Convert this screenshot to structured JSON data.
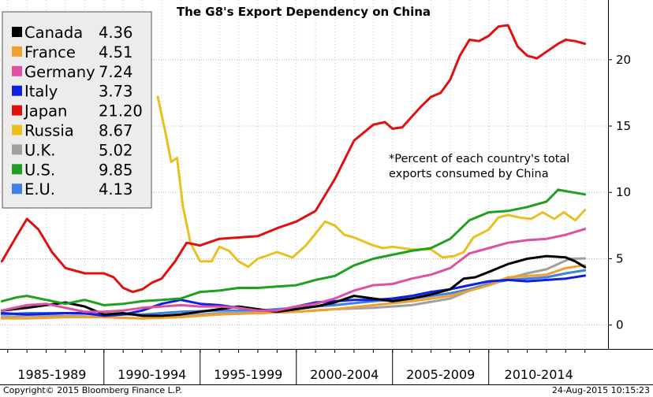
{
  "chart_data": {
    "type": "line",
    "title": "The G8's Export Dependency on China",
    "note_lines": [
      "*Percent of each country's total",
      "exports consumed by China"
    ],
    "categories": [
      "1985-1989",
      "1990-1994",
      "1995-1999",
      "2000-2004",
      "2005-2009",
      "2010-2014"
    ],
    "yticks": [
      0,
      5,
      10,
      15,
      20
    ],
    "ylim": [
      -1.8,
      24.5
    ],
    "xlim": [
      1984.6,
      2016.2
    ],
    "footer_left": "Copyright© 2015 Bloomberg Finance L.P.",
    "footer_right": "24-Aug-2015 10:15:23",
    "series": [
      {
        "name": "Canada",
        "last": "4.36",
        "color": "#000000",
        "x": [
          1984.7,
          1986,
          1987,
          1988,
          1989,
          1990,
          1991,
          1992,
          1993,
          1994,
          1995,
          1996,
          1997,
          1998,
          1999,
          2000,
          2001,
          2002,
          2003,
          2004,
          2005,
          2006,
          2007,
          2008,
          2008.7,
          2009.3,
          2010,
          2011,
          2012,
          2013,
          2014,
          2014.5,
          2015
        ],
        "y": [
          1.1,
          1.3,
          1.5,
          1.7,
          1.4,
          0.8,
          0.9,
          0.7,
          0.7,
          0.8,
          1.0,
          1.2,
          1.4,
          1.2,
          1.0,
          1.2,
          1.4,
          1.7,
          2.2,
          2.0,
          1.8,
          2.0,
          2.3,
          2.7,
          3.5,
          3.6,
          4.0,
          4.6,
          5.0,
          5.2,
          5.1,
          4.8,
          4.36
        ]
      },
      {
        "name": "France",
        "last": "4.51",
        "color": "#f0a030",
        "x": [
          1984.7,
          1986,
          1988,
          1990,
          1992,
          1994,
          1996,
          1998,
          2000,
          2002,
          2004,
          2006,
          2008,
          2009,
          2010,
          2011,
          2012,
          2013,
          2014,
          2015
        ],
        "y": [
          0.5,
          0.5,
          0.6,
          0.6,
          0.5,
          0.6,
          0.8,
          0.9,
          1.0,
          1.2,
          1.5,
          1.8,
          2.2,
          2.6,
          3.0,
          3.6,
          3.7,
          3.8,
          4.3,
          4.51
        ]
      },
      {
        "name": "Germany",
        "last": "7.24",
        "color": "#e050a0",
        "x": [
          1984.7,
          1986,
          1987,
          1988,
          1989,
          1990,
          1991,
          1992,
          1993,
          1994,
          1995,
          1996,
          1997,
          1998,
          1999,
          2000,
          2001,
          2002,
          2003,
          2004,
          2005,
          2006,
          2007,
          2008,
          2009,
          2010,
          2011,
          2012,
          2013,
          2014,
          2015
        ],
        "y": [
          1.1,
          1.5,
          1.6,
          1.3,
          1.0,
          1.0,
          1.1,
          1.3,
          1.4,
          1.5,
          1.4,
          1.4,
          1.3,
          1.1,
          1.1,
          1.4,
          1.6,
          2.0,
          2.6,
          3.0,
          3.1,
          3.5,
          3.8,
          4.3,
          5.4,
          5.8,
          6.2,
          6.4,
          6.5,
          6.8,
          7.24
        ]
      },
      {
        "name": "Italy",
        "last": "3.73",
        "color": "#1020e0",
        "x": [
          1984.7,
          1986,
          1988,
          1989,
          1990,
          1991,
          1992,
          1993,
          1994,
          1995,
          1996,
          1997,
          1998,
          1999,
          2000,
          2001,
          2002,
          2003,
          2004,
          2005,
          2006,
          2007,
          2008,
          2009,
          2010,
          2011,
          2012,
          2013,
          2014,
          2015
        ],
        "y": [
          0.9,
          0.8,
          0.9,
          0.9,
          0.7,
          0.8,
          1.1,
          1.6,
          1.9,
          1.6,
          1.5,
          1.3,
          1.1,
          1.1,
          1.4,
          1.7,
          1.8,
          1.9,
          1.9,
          2.0,
          2.2,
          2.5,
          2.7,
          3.0,
          3.3,
          3.4,
          3.3,
          3.4,
          3.5,
          3.73
        ]
      },
      {
        "name": "Japan",
        "last": "21.20",
        "color": "#e01010",
        "x": [
          1984.7,
          1985.5,
          1986,
          1986.6,
          1987.3,
          1988,
          1989,
          1990,
          1990.5,
          1991,
          1991.5,
          1992,
          1992.5,
          1993,
          1993.7,
          1994.3,
          1995,
          1996,
          1997,
          1998,
          1999,
          2000,
          2001,
          2002,
          2003,
          2004,
          2004.6,
          2005,
          2005.5,
          2006,
          2006.5,
          2007,
          2007.5,
          2008,
          2008.5,
          2009,
          2009.5,
          2010,
          2010.5,
          2011,
          2011.5,
          2012,
          2012.5,
          2013,
          2013.6,
          2014,
          2014.5,
          2015
        ],
        "y": [
          4.8,
          6.8,
          8.0,
          7.2,
          5.5,
          4.3,
          3.9,
          3.9,
          3.6,
          2.8,
          2.5,
          2.7,
          3.2,
          3.5,
          4.8,
          6.2,
          6.0,
          6.5,
          6.6,
          6.7,
          7.3,
          7.8,
          8.6,
          11.0,
          13.9,
          15.1,
          15.3,
          14.8,
          14.9,
          15.7,
          16.5,
          17.2,
          17.5,
          18.5,
          20.3,
          21.5,
          21.4,
          21.8,
          22.5,
          22.6,
          21.0,
          20.3,
          20.1,
          20.6,
          21.2,
          21.5,
          21.4,
          21.2
        ]
      },
      {
        "name": "Russia",
        "last": "8.67",
        "color": "#e8c020",
        "x": [
          1992.8,
          1993.2,
          1993.5,
          1993.8,
          1994.1,
          1994.5,
          1995,
          1995.6,
          1996,
          1996.5,
          1997,
          1997.5,
          1998,
          1999,
          1999.8,
          2000.5,
          2001,
          2001.5,
          2002,
          2002.5,
          2003,
          2004,
          2004.5,
          2005,
          2006,
          2007,
          2007.6,
          2008.2,
          2008.7,
          2009.2,
          2010,
          2010.5,
          2011,
          2011.6,
          2012.2,
          2012.8,
          2013.4,
          2013.9,
          2014.5,
          2015
        ],
        "y": [
          17.2,
          14.5,
          12.3,
          12.6,
          9.0,
          6.2,
          4.8,
          4.8,
          5.9,
          5.6,
          4.8,
          4.4,
          5.0,
          5.5,
          5.1,
          6.0,
          6.9,
          7.8,
          7.5,
          6.8,
          6.6,
          6.0,
          5.8,
          5.9,
          5.7,
          5.7,
          5.1,
          5.2,
          5.5,
          6.6,
          7.2,
          8.1,
          8.3,
          8.1,
          8.0,
          8.5,
          8.0,
          8.5,
          7.9,
          8.67
        ]
      },
      {
        "name": "U.K.",
        "last": "5.02",
        "color": "#a0a0a0",
        "x": [
          1984.7,
          1986,
          1988,
          1990,
          1992,
          1994,
          1996,
          1998,
          2000,
          2002,
          2004,
          2006,
          2008,
          2009,
          2010,
          2011,
          2012,
          2013,
          2013.6,
          2014.2,
          2015
        ],
        "y": [
          0.6,
          0.7,
          0.7,
          0.6,
          0.5,
          0.7,
          0.9,
          0.9,
          1.0,
          1.2,
          1.3,
          1.5,
          2.0,
          2.6,
          3.0,
          3.5,
          3.9,
          4.2,
          4.6,
          5.0,
          5.02
        ]
      },
      {
        "name": "U.S.",
        "last": "9.85",
        "color": "#20a020",
        "x": [
          1984.7,
          1985.5,
          1986,
          1987,
          1988,
          1989,
          1990,
          1991,
          1992,
          1993,
          1994,
          1995,
          1996,
          1997,
          1998,
          1999,
          2000,
          2001,
          2002,
          2003,
          2004,
          2005,
          2006,
          2007,
          2008,
          2009,
          2010,
          2011,
          2012,
          2013,
          2013.6,
          2014,
          2015
        ],
        "y": [
          1.8,
          2.1,
          2.2,
          1.9,
          1.6,
          1.9,
          1.5,
          1.6,
          1.8,
          1.9,
          2.0,
          2.5,
          2.6,
          2.8,
          2.8,
          2.9,
          3.0,
          3.4,
          3.7,
          4.5,
          5.0,
          5.3,
          5.6,
          5.8,
          6.5,
          7.9,
          8.5,
          8.6,
          8.9,
          9.3,
          10.2,
          10.1,
          9.85
        ]
      },
      {
        "name": "E.U.",
        "last": "4.13",
        "color": "#4080e0",
        "x": [
          1984.7,
          1986,
          1988,
          1990,
          1992,
          1994,
          1996,
          1998,
          2000,
          2002,
          2004,
          2006,
          2008,
          2009,
          2010,
          2011,
          2012,
          2013,
          2014,
          2015
        ],
        "y": [
          0.8,
          0.9,
          0.9,
          0.8,
          0.8,
          1.0,
          1.1,
          1.1,
          1.3,
          1.5,
          1.8,
          2.0,
          2.4,
          2.7,
          3.1,
          3.4,
          3.5,
          3.6,
          3.9,
          4.13
        ]
      }
    ]
  }
}
